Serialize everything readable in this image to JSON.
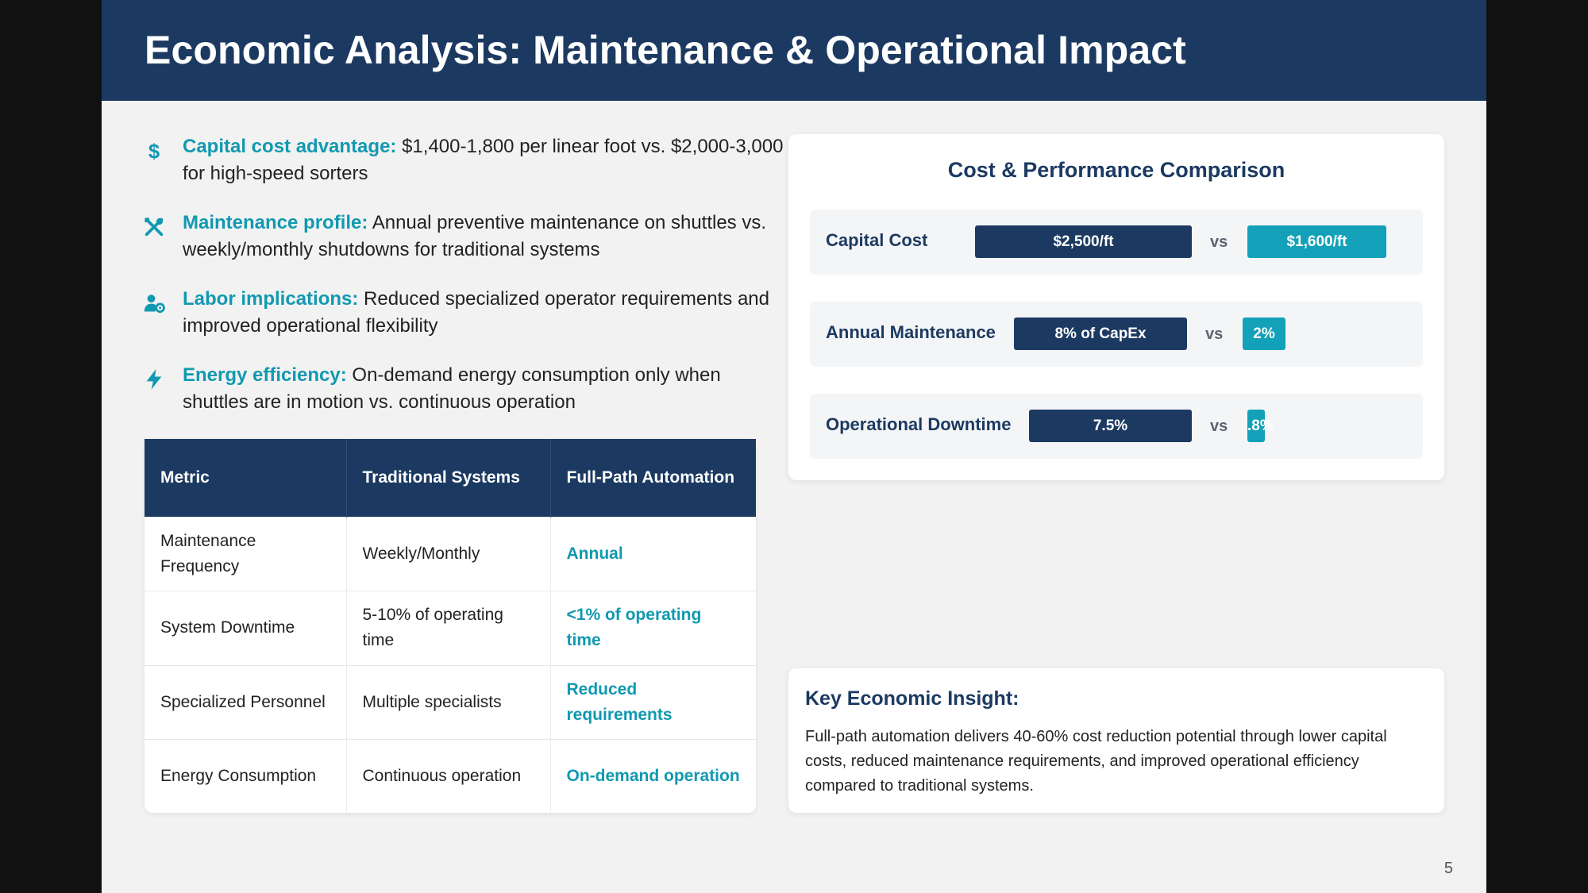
{
  "title": "Economic Analysis: Maintenance & Operational Impact",
  "bullets": [
    {
      "icon": "dollar-icon",
      "lead": "Capital cost advantage:",
      "text": " $1,400-1,800 per linear foot vs. $2,000-3,000 for high-speed sorters"
    },
    {
      "icon": "tools-icon",
      "lead": "Maintenance profile:",
      "text": " Annual preventive maintenance on shuttles vs. weekly/monthly shutdowns for traditional systems"
    },
    {
      "icon": "user-gear-icon",
      "lead": "Labor implications:",
      "text": " Reduced specialized operator requirements and improved operational flexibility"
    },
    {
      "icon": "lightning-icon",
      "lead": "Energy efficiency:",
      "text": " On-demand energy consumption only when shuttles are in motion vs. continuous operation"
    }
  ],
  "table": {
    "headers": [
      "Metric",
      "Traditional Systems",
      "Full-Path Automation"
    ],
    "rows": [
      [
        "Maintenance Frequency",
        "Weekly/Monthly",
        "Annual"
      ],
      [
        "System Downtime",
        "5-10% of operating time",
        "<1% of operating time"
      ],
      [
        "Specialized Personnel",
        "Multiple specialists",
        "Reduced requirements"
      ],
      [
        "Energy Consumption",
        "Continuous operation",
        "On-demand operation"
      ]
    ]
  },
  "comparison": {
    "title": "Cost & Performance Comparison",
    "vs_label": "vs",
    "rows": [
      {
        "label": "Capital Cost",
        "traditional": "$2,500/ft",
        "automation": "$1,600/ft"
      },
      {
        "label": "Annual Maintenance",
        "traditional": "8% of CapEx",
        "automation": "2%"
      },
      {
        "label": "Operational Downtime",
        "traditional": "7.5%",
        "automation": ".8%"
      }
    ]
  },
  "insight": {
    "title": "Key Economic Insight:",
    "text": "Full-path automation delivers 40-60% cost reduction potential through lower capital costs, reduced maintenance requirements, and improved operational efficiency compared to traditional systems."
  },
  "page_number": "5",
  "colors": {
    "navy": "#1c3a61",
    "teal": "#12a1b8",
    "accent_text": "#1199b0"
  }
}
